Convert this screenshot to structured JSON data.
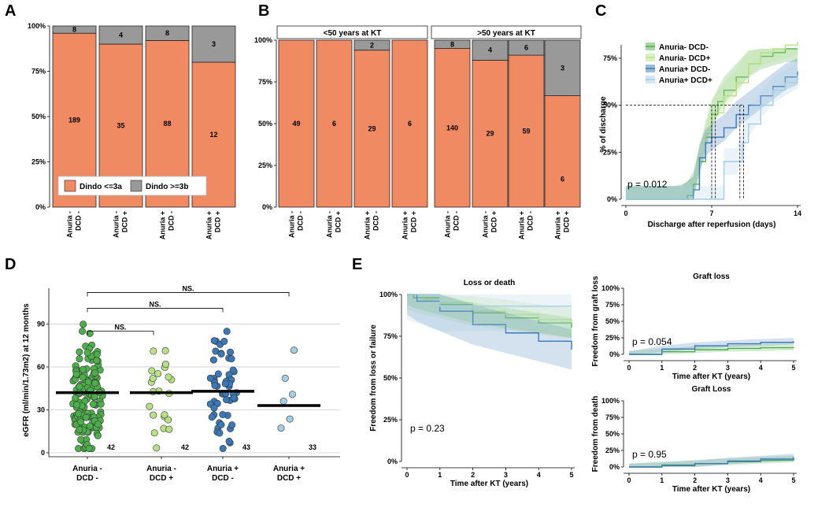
{
  "panels": {
    "A": "A",
    "B": "B",
    "C": "C",
    "D": "D",
    "E": "E"
  },
  "colors": {
    "orange": "#ef8a62",
    "gray": "#999999",
    "dg": "#4daf4a",
    "lg": "#b8e186",
    "db": "#3a78b8",
    "lb": "#a6cee3"
  },
  "chart_data": [
    {
      "id": "A",
      "type": "bar",
      "stacked": true,
      "categories": [
        "Anuria - DCD -",
        "Anuria - DCD +",
        "Anuria + DCD -",
        "Anuria + DCD +"
      ],
      "series": [
        {
          "name": "Dindo <=3a",
          "values": [
            0.96,
            0.9,
            0.92,
            0.8
          ],
          "labels": [
            "189",
            "35",
            "88",
            "12"
          ]
        },
        {
          "name": "Dindo >=3b",
          "values": [
            0.04,
            0.1,
            0.08,
            0.2
          ],
          "labels": [
            "8",
            "4",
            "8",
            "3"
          ]
        }
      ],
      "yticks": [
        "0%",
        "25%",
        "50%",
        "75%",
        "100%"
      ],
      "legend": [
        "Dindo <=3a",
        "Dindo >=3b"
      ]
    },
    {
      "id": "B",
      "type": "bar",
      "stacked": true,
      "facets": [
        "<50 years at KT",
        ">50 years at KT"
      ],
      "categories": [
        "Anuria - DCD -",
        "Anuria - DCD +",
        "Anuria + DCD -",
        "Anuria + DCD +"
      ],
      "facet_data": [
        {
          "orange": [
            1.0,
            1.0,
            0.94,
            1.0
          ],
          "olab": [
            "49",
            "6",
            "29",
            "6"
          ],
          "glab": [
            "",
            "",
            "2",
            ""
          ]
        },
        {
          "orange": [
            0.95,
            0.88,
            0.91,
            0.667
          ],
          "olab": [
            "140",
            "29",
            "59",
            "6"
          ],
          "glab": [
            "8",
            "4",
            "6",
            "3"
          ]
        }
      ],
      "yticks": [
        "0%",
        "25%",
        "50%",
        "75%",
        "100%"
      ]
    },
    {
      "id": "C",
      "type": "line",
      "xlabel": "Discharge after reperfusion (days)",
      "ylabel": "% of discharge",
      "xticks": [
        "0",
        "7",
        "14"
      ],
      "yticks": [
        "0%",
        "25%",
        "50%",
        "75%"
      ],
      "pvalue": "p = 0.012",
      "legend": [
        "Anuria- DCD-",
        "Anuria- DCD+",
        "Anuria+ DCD-",
        "Anuria+ DCD+"
      ],
      "series": [
        {
          "name": "Anuria- DCD-",
          "x": [
            0,
            4,
            5,
            5.5,
            6,
            6.5,
            7,
            7.5,
            8,
            9,
            10,
            11,
            12,
            13,
            14
          ],
          "y": [
            0,
            0,
            0.02,
            0.08,
            0.2,
            0.33,
            0.45,
            0.52,
            0.58,
            0.65,
            0.72,
            0.76,
            0.78,
            0.8,
            0.8
          ]
        },
        {
          "name": "Anuria- DCD+",
          "x": [
            0,
            4.5,
            5.5,
            6,
            6.5,
            7,
            8,
            9,
            10,
            11,
            12,
            13,
            14
          ],
          "y": [
            0,
            0,
            0.05,
            0.22,
            0.35,
            0.46,
            0.55,
            0.62,
            0.72,
            0.78,
            0.8,
            0.82,
            0.84
          ]
        },
        {
          "name": "Anuria+ DCD-",
          "x": [
            0,
            4.5,
            5.5,
            6,
            6.5,
            7,
            8,
            9,
            10,
            11,
            12,
            13,
            14
          ],
          "y": [
            0,
            0,
            0.05,
            0.22,
            0.3,
            0.33,
            0.38,
            0.45,
            0.5,
            0.55,
            0.6,
            0.65,
            0.68
          ]
        },
        {
          "name": "Anuria+ DCD+",
          "x": [
            0,
            7,
            8,
            8,
            9,
            9.5,
            10,
            11,
            12,
            13,
            14
          ],
          "y": [
            0,
            0,
            0,
            0.2,
            0.2,
            0.3,
            0.4,
            0.5,
            0.58,
            0.62,
            0.66
          ]
        }
      ]
    },
    {
      "id": "D",
      "type": "scatter",
      "ylabel": "eGFR (ml/min/1.73m2) at 12 months",
      "categories": [
        "Anuria - DCD -",
        "Anuria - DCD +",
        "Anuria + DCD -",
        "Anuria + DCD +"
      ],
      "yticks": [
        "0",
        "30",
        "60",
        "90"
      ],
      "medians": [
        42,
        42,
        43,
        33
      ],
      "median_labels": [
        "42",
        "42",
        "43",
        "33"
      ],
      "comparisons": [
        "NS.",
        "NS.",
        "NS."
      ]
    },
    {
      "id": "E1",
      "type": "line",
      "title": "Loss or death",
      "xlabel": "Time after KT (years)",
      "ylabel": "Freedom from loss or failure",
      "xticks": [
        "0",
        "1",
        "2",
        "3",
        "4",
        "5"
      ],
      "yticks": [
        "0%",
        "25%",
        "50%",
        "75%",
        "100%"
      ],
      "pvalue": "p = 0.23",
      "series": [
        {
          "name": "Anuria- DCD-",
          "x": [
            0,
            0.2,
            1,
            2,
            3,
            4,
            5
          ],
          "y": [
            1,
            0.98,
            0.94,
            0.89,
            0.86,
            0.83,
            0.8
          ]
        },
        {
          "name": "Anuria- DCD+",
          "x": [
            0,
            0.5,
            1,
            2,
            3,
            4,
            5
          ],
          "y": [
            1,
            0.97,
            0.95,
            0.9,
            0.88,
            0.85,
            0.83
          ]
        },
        {
          "name": "Anuria+ DCD-",
          "x": [
            0,
            0.3,
            1,
            2,
            3,
            4,
            5
          ],
          "y": [
            1,
            0.96,
            0.9,
            0.82,
            0.77,
            0.72,
            0.67
          ]
        },
        {
          "name": "Anuria+ DCD+",
          "x": [
            0,
            1,
            2,
            3,
            4,
            5
          ],
          "y": [
            1,
            0.93,
            0.93,
            0.93,
            0.93,
            0.93
          ]
        }
      ]
    },
    {
      "id": "E2",
      "type": "line",
      "title": "Graft loss",
      "xlabel": "Time after KT (years)",
      "ylabel": "Freedom from graft loss",
      "xticks": [
        "0",
        "1",
        "2",
        "3",
        "4",
        "5"
      ],
      "yticks": [
        "0%",
        "25%",
        "50%",
        "75%",
        "100%"
      ],
      "pvalue": "p = 0.054",
      "series": [
        {
          "name": "Anuria- DCD-",
          "x": [
            0,
            1,
            2,
            3,
            4,
            5
          ],
          "y": [
            0,
            0.04,
            0.07,
            0.09,
            0.1,
            0.11
          ]
        },
        {
          "name": "Anuria+ DCD-",
          "x": [
            0,
            1,
            2,
            3,
            4,
            5
          ],
          "y": [
            0,
            0.08,
            0.13,
            0.16,
            0.18,
            0.2
          ]
        }
      ]
    },
    {
      "id": "E3",
      "type": "line",
      "title": "Graft Loss",
      "xlabel": "Time after KT (years)",
      "ylabel": "Freedom from death",
      "xticks": [
        "0",
        "1",
        "2",
        "3",
        "4",
        "5"
      ],
      "yticks": [
        "0%",
        "25%",
        "50%",
        "75%",
        "100%"
      ],
      "pvalue": "p = 0.95",
      "series": [
        {
          "name": "Anuria- DCD-",
          "x": [
            0,
            1,
            2,
            3,
            4,
            5
          ],
          "y": [
            0,
            0.03,
            0.05,
            0.08,
            0.1,
            0.12
          ]
        },
        {
          "name": "Anuria+ DCD-",
          "x": [
            0,
            1,
            2,
            3,
            4,
            5
          ],
          "y": [
            0,
            0.02,
            0.05,
            0.09,
            0.12,
            0.15
          ]
        }
      ]
    }
  ]
}
